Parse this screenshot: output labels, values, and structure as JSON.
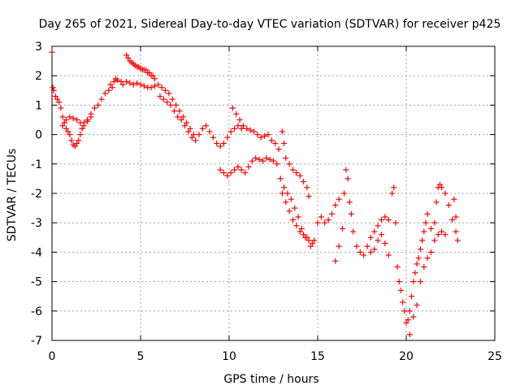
{
  "chart_data": {
    "type": "scatter",
    "title": "Day 265 of 2021, Sidereal Day-to-day VTEC variation (SDTVAR) for receiver p425",
    "xlabel": "GPS time / hours",
    "ylabel": "SDTVAR / TECUs",
    "xlim": [
      0,
      25
    ],
    "ylim": [
      -7,
      3
    ],
    "xticks": [
      0,
      5,
      10,
      15,
      20,
      25
    ],
    "yticks": [
      3,
      2,
      1,
      0,
      -1,
      -2,
      -3,
      -4,
      -5,
      -6,
      -7
    ],
    "marker": "+",
    "color": "#ff0000",
    "grid": true,
    "series": [
      {
        "name": "SDTVAR",
        "points": [
          [
            0.0,
            2.8
          ],
          [
            0.05,
            1.6
          ],
          [
            0.1,
            1.5
          ],
          [
            0.2,
            1.3
          ],
          [
            0.3,
            1.2
          ],
          [
            0.4,
            1.1
          ],
          [
            0.5,
            0.9
          ],
          [
            0.6,
            0.6
          ],
          [
            0.7,
            0.4
          ],
          [
            0.8,
            0.2
          ],
          [
            0.9,
            0.1
          ],
          [
            1.0,
            0.0
          ],
          [
            1.1,
            -0.2
          ],
          [
            1.2,
            -0.35
          ],
          [
            1.3,
            -0.4
          ],
          [
            1.4,
            -0.3
          ],
          [
            1.5,
            -0.2
          ],
          [
            1.6,
            0.0
          ],
          [
            1.7,
            0.2
          ],
          [
            1.8,
            0.4
          ],
          [
            2.0,
            0.5
          ],
          [
            2.2,
            0.6
          ],
          [
            0.6,
            0.3
          ],
          [
            0.8,
            0.5
          ],
          [
            1.0,
            0.6
          ],
          [
            1.2,
            0.55
          ],
          [
            1.4,
            0.5
          ],
          [
            1.6,
            0.4
          ],
          [
            1.8,
            0.3
          ],
          [
            2.0,
            0.45
          ],
          [
            2.2,
            0.7
          ],
          [
            2.4,
            0.9
          ],
          [
            2.6,
            1.0
          ],
          [
            2.8,
            1.2
          ],
          [
            3.0,
            1.4
          ],
          [
            3.2,
            1.5
          ],
          [
            3.4,
            1.6
          ],
          [
            3.5,
            1.8
          ],
          [
            3.6,
            1.9
          ],
          [
            3.3,
            1.7
          ],
          [
            3.7,
            1.85
          ],
          [
            3.9,
            1.8
          ],
          [
            4.0,
            1.7
          ],
          [
            4.2,
            2.7
          ],
          [
            4.3,
            2.6
          ],
          [
            4.4,
            2.5
          ],
          [
            4.5,
            2.45
          ],
          [
            4.6,
            2.4
          ],
          [
            4.7,
            2.35
          ],
          [
            4.8,
            2.3
          ],
          [
            4.9,
            2.3
          ],
          [
            5.0,
            2.25
          ],
          [
            5.1,
            2.2
          ],
          [
            5.2,
            2.2
          ],
          [
            5.3,
            2.2
          ],
          [
            5.4,
            2.1
          ],
          [
            5.5,
            2.1
          ],
          [
            5.6,
            2.0
          ],
          [
            5.7,
            2.0
          ],
          [
            5.8,
            1.9
          ],
          [
            4.2,
            1.8
          ],
          [
            4.4,
            1.75
          ],
          [
            4.6,
            1.7
          ],
          [
            4.8,
            1.75
          ],
          [
            5.0,
            1.7
          ],
          [
            5.2,
            1.65
          ],
          [
            5.4,
            1.6
          ],
          [
            5.6,
            1.6
          ],
          [
            5.8,
            1.65
          ],
          [
            6.0,
            1.7
          ],
          [
            6.2,
            1.6
          ],
          [
            6.4,
            1.5
          ],
          [
            6.6,
            1.4
          ],
          [
            6.8,
            1.2
          ],
          [
            7.0,
            1.0
          ],
          [
            7.2,
            0.8
          ],
          [
            7.4,
            0.6
          ],
          [
            7.6,
            0.4
          ],
          [
            7.8,
            0.2
          ],
          [
            8.0,
            0.0
          ],
          [
            6.1,
            1.3
          ],
          [
            6.3,
            1.2
          ],
          [
            6.5,
            1.1
          ],
          [
            6.7,
            1.0
          ],
          [
            6.9,
            0.8
          ],
          [
            7.1,
            0.6
          ],
          [
            7.3,
            0.5
          ],
          [
            7.5,
            0.3
          ],
          [
            7.7,
            0.1
          ],
          [
            7.9,
            -0.1
          ],
          [
            8.1,
            -0.2
          ],
          [
            8.3,
            0.0
          ],
          [
            8.5,
            0.2
          ],
          [
            8.7,
            0.3
          ],
          [
            8.9,
            0.1
          ],
          [
            9.1,
            -0.1
          ],
          [
            9.3,
            -0.3
          ],
          [
            9.5,
            -0.4
          ],
          [
            9.7,
            -0.3
          ],
          [
            9.9,
            -0.1
          ],
          [
            10.1,
            0.1
          ],
          [
            10.3,
            0.2
          ],
          [
            10.5,
            0.3
          ],
          [
            10.7,
            0.2
          ],
          [
            10.2,
            0.9
          ],
          [
            10.4,
            0.7
          ],
          [
            10.6,
            0.5
          ],
          [
            10.8,
            0.3
          ],
          [
            11.0,
            0.2
          ],
          [
            11.2,
            0.15
          ],
          [
            11.4,
            0.1
          ],
          [
            11.6,
            0.0
          ],
          [
            11.8,
            -0.1
          ],
          [
            12.0,
            -0.05
          ],
          [
            12.2,
            0.0
          ],
          [
            12.4,
            -0.2
          ],
          [
            12.6,
            -0.3
          ],
          [
            12.8,
            -0.5
          ],
          [
            9.5,
            -1.2
          ],
          [
            9.7,
            -1.3
          ],
          [
            9.9,
            -1.4
          ],
          [
            10.1,
            -1.3
          ],
          [
            10.3,
            -1.2
          ],
          [
            10.5,
            -1.1
          ],
          [
            10.7,
            -1.2
          ],
          [
            10.9,
            -1.3
          ],
          [
            11.1,
            -1.1
          ],
          [
            11.3,
            -0.9
          ],
          [
            11.5,
            -0.8
          ],
          [
            11.7,
            -0.85
          ],
          [
            11.9,
            -0.9
          ],
          [
            12.1,
            -0.8
          ],
          [
            12.3,
            -0.85
          ],
          [
            12.5,
            -0.9
          ],
          [
            12.7,
            -1.0
          ],
          [
            12.9,
            -1.5
          ],
          [
            13.1,
            -1.8
          ],
          [
            13.3,
            -2.0
          ],
          [
            13.5,
            -2.2
          ],
          [
            13.7,
            -2.5
          ],
          [
            13.9,
            -2.8
          ],
          [
            14.1,
            -3.2
          ],
          [
            14.3,
            -3.5
          ],
          [
            14.5,
            -3.6
          ],
          [
            14.7,
            -3.7
          ],
          [
            13.0,
            0.1
          ],
          [
            13.1,
            -0.3
          ],
          [
            13.2,
            -0.8
          ],
          [
            13.4,
            -1.0
          ],
          [
            13.6,
            -1.2
          ],
          [
            13.8,
            -1.3
          ],
          [
            14.0,
            -1.4
          ],
          [
            14.2,
            -1.6
          ],
          [
            14.4,
            -1.8
          ],
          [
            14.5,
            -2.1
          ],
          [
            13.0,
            -2.0
          ],
          [
            13.2,
            -2.3
          ],
          [
            13.4,
            -2.6
          ],
          [
            13.6,
            -2.9
          ],
          [
            13.8,
            -3.1
          ],
          [
            14.0,
            -3.3
          ],
          [
            14.2,
            -3.4
          ],
          [
            14.4,
            -3.5
          ],
          [
            14.6,
            -3.8
          ],
          [
            14.8,
            -3.6
          ],
          [
            15.0,
            -3.0
          ],
          [
            15.2,
            -2.8
          ],
          [
            15.4,
            -3.0
          ],
          [
            15.6,
            -2.9
          ],
          [
            15.8,
            -2.7
          ],
          [
            16.0,
            -2.4
          ],
          [
            16.2,
            -2.2
          ],
          [
            16.0,
            -4.3
          ],
          [
            16.2,
            -3.8
          ],
          [
            16.4,
            -3.2
          ],
          [
            16.5,
            -2.0
          ],
          [
            16.6,
            -1.2
          ],
          [
            16.7,
            -1.5
          ],
          [
            16.8,
            -2.3
          ],
          [
            16.9,
            -2.7
          ],
          [
            17.0,
            -3.3
          ],
          [
            17.2,
            -3.8
          ],
          [
            17.4,
            -4.0
          ],
          [
            17.6,
            -4.1
          ],
          [
            17.8,
            -3.8
          ],
          [
            18.0,
            -3.5
          ],
          [
            18.2,
            -3.3
          ],
          [
            18.4,
            -3.1
          ],
          [
            18.6,
            -2.9
          ],
          [
            18.8,
            -2.8
          ],
          [
            19.0,
            -2.9
          ],
          [
            18.0,
            -4.0
          ],
          [
            18.2,
            -3.9
          ],
          [
            18.4,
            -3.6
          ],
          [
            18.6,
            -3.4
          ],
          [
            18.8,
            -3.7
          ],
          [
            19.0,
            -4.1
          ],
          [
            19.2,
            -2.0
          ],
          [
            19.3,
            -1.8
          ],
          [
            19.4,
            -3.0
          ],
          [
            19.5,
            -4.5
          ],
          [
            19.6,
            -5.0
          ],
          [
            19.7,
            -5.3
          ],
          [
            19.8,
            -5.7
          ],
          [
            19.9,
            -6.0
          ],
          [
            20.0,
            -6.4
          ],
          [
            20.1,
            -6.3
          ],
          [
            20.2,
            -6.0
          ],
          [
            20.3,
            -5.5
          ],
          [
            20.4,
            -5.0
          ],
          [
            20.5,
            -4.7
          ],
          [
            20.6,
            -4.4
          ],
          [
            20.7,
            -4.2
          ],
          [
            20.8,
            -3.9
          ],
          [
            20.9,
            -3.6
          ],
          [
            21.0,
            -3.3
          ],
          [
            21.1,
            -3.0
          ],
          [
            21.2,
            -2.7
          ],
          [
            21.4,
            -3.2
          ],
          [
            21.6,
            -3.6
          ],
          [
            21.8,
            -3.4
          ],
          [
            22.0,
            -3.3
          ],
          [
            22.2,
            -3.4
          ],
          [
            20.2,
            -6.8
          ],
          [
            20.4,
            -6.2
          ],
          [
            20.6,
            -5.8
          ],
          [
            20.8,
            -5.0
          ],
          [
            21.0,
            -4.5
          ],
          [
            21.2,
            -4.2
          ],
          [
            21.4,
            -4.0
          ],
          [
            21.6,
            -3.0
          ],
          [
            21.7,
            -2.3
          ],
          [
            21.8,
            -1.8
          ],
          [
            21.9,
            -1.7
          ],
          [
            22.0,
            -1.8
          ],
          [
            22.2,
            -2.0
          ],
          [
            22.4,
            -2.4
          ],
          [
            22.6,
            -2.9
          ],
          [
            22.7,
            -2.2
          ],
          [
            22.8,
            -3.3
          ],
          [
            22.9,
            -3.6
          ],
          [
            22.8,
            -2.8
          ]
        ]
      }
    ]
  }
}
